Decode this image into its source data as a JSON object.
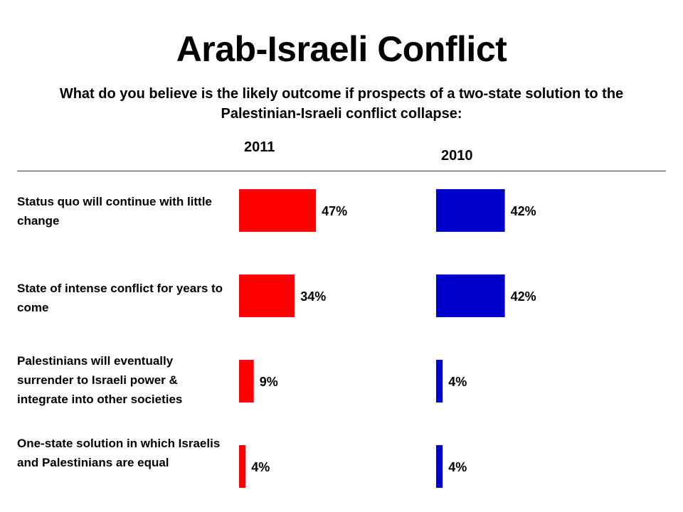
{
  "title": "Arab-Israeli Conflict",
  "subtitle": "What do you believe is the likely outcome if prospects of a two-state solution to the Palestinian-Israeli conflict collapse:",
  "chart_data": {
    "type": "bar",
    "orientation": "horizontal",
    "categories": [
      "Status quo will continue with little change",
      "State of intense conflict for years to come",
      "Palestinians will eventually surrender to Israeli power & integrate into other societies",
      "One-state solution in which Israelis and Palestinians are equal"
    ],
    "series": [
      {
        "name": "2011",
        "values": [
          47,
          34,
          9,
          4
        ],
        "labels": [
          "47%",
          "34%",
          "9%",
          "4%"
        ],
        "color": "#ff0000"
      },
      {
        "name": "2010",
        "values": [
          42,
          42,
          4,
          4
        ],
        "labels": [
          "42%",
          "42%",
          "4%",
          "4%"
        ],
        "color": "#0000cc"
      }
    ],
    "unit": "%",
    "grid": false,
    "legend": "column headers above bars"
  }
}
